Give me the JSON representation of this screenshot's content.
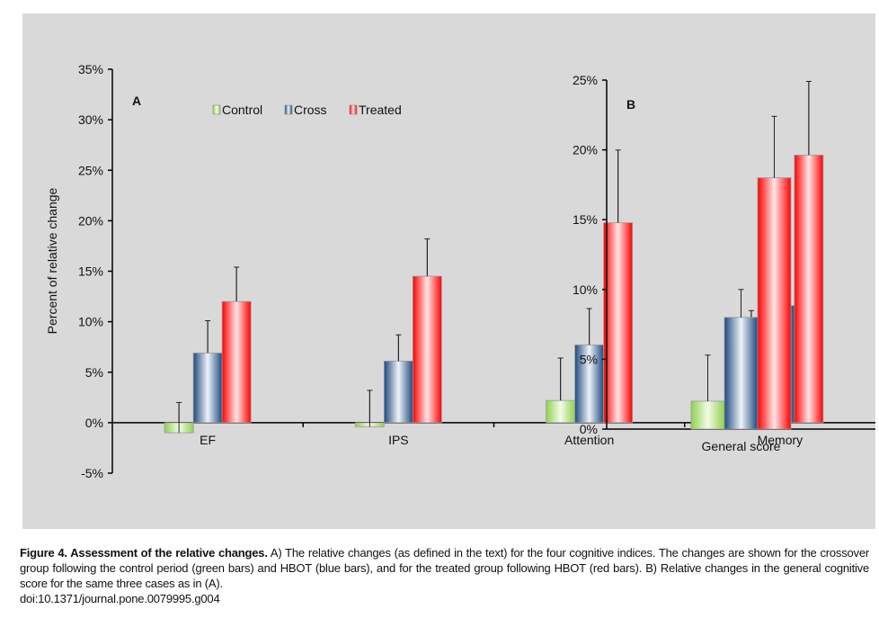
{
  "chart_data": [
    {
      "type": "bar",
      "panel_label": "A",
      "title": "",
      "xlabel": "",
      "ylabel": "Percent of relative change",
      "ylim": [
        -5,
        35
      ],
      "yticks": [
        "-5%",
        "0%",
        "5%",
        "10%",
        "15%",
        "20%",
        "25%",
        "30%",
        "35%"
      ],
      "categories": [
        "EF",
        "IPS",
        "Attention",
        "Memory"
      ],
      "legend": {
        "placement": "top-center",
        "entries": [
          "Control",
          "Cross",
          "Treated"
        ]
      },
      "series": [
        {
          "name": "Control",
          "color": "#8fd14f",
          "values": [
            -1.0,
            -0.4,
            2.2,
            5.5
          ],
          "error_top": [
            2.0,
            3.2,
            6.4,
            11.1
          ]
        },
        {
          "name": "Cross",
          "color": "#1f497d",
          "values": [
            6.9,
            6.1,
            7.7,
            11.6
          ],
          "error_top": [
            10.1,
            8.7,
            11.3,
            16.4
          ]
        },
        {
          "name": "Treated",
          "color": "#ff0000",
          "values": [
            12.0,
            14.5,
            19.8,
            26.5
          ],
          "error_top": [
            15.4,
            18.2,
            27.0,
            33.8
          ]
        }
      ]
    },
    {
      "type": "bar",
      "panel_label": "B",
      "title": "",
      "xlabel": "",
      "ylabel": "",
      "ylim": [
        0,
        25
      ],
      "yticks": [
        "0%",
        "5%",
        "10%",
        "15%",
        "20%",
        "25%"
      ],
      "categories": [
        "General score"
      ],
      "series": [
        {
          "name": "Control",
          "color": "#8fd14f",
          "values": [
            2.0
          ],
          "error_top": [
            5.3
          ]
        },
        {
          "name": "Cross",
          "color": "#1f497d",
          "values": [
            8.0
          ],
          "error_top": [
            10.0
          ]
        },
        {
          "name": "Treated",
          "color": "#ff0000",
          "values": [
            18.0
          ],
          "error_top": [
            22.4
          ]
        }
      ]
    }
  ],
  "caption": {
    "bold": "Figure 4. Assessment of the relative changes.",
    "text": " A) The relative changes (as defined in the text) for the four cognitive indices. The changes are shown for the crossover group following the control period (green bars) and HBOT (blue bars), and for the treated group following HBOT (red bars). B) Relative changes in the general cognitive score for the same three cases as in (A).",
    "doi": "doi:10.1371/journal.pone.0079995.g004"
  }
}
